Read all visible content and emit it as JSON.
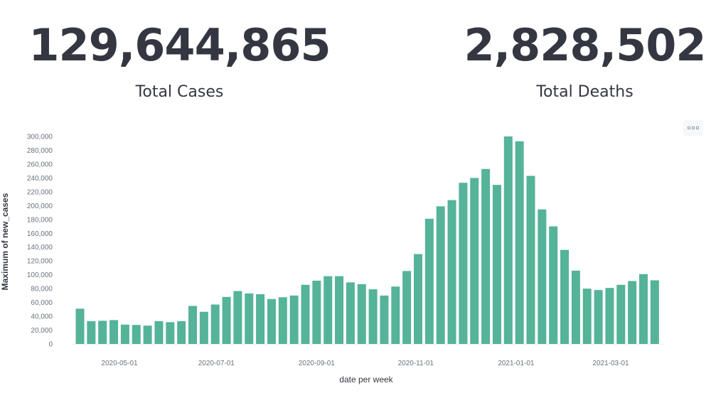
{
  "metrics": {
    "total_cases": {
      "value": "129,644,865",
      "label": "Total Cases"
    },
    "total_deaths": {
      "value": "2,828,502",
      "label": "Total Deaths"
    }
  },
  "panel_options_icon": "ellipsis-icon",
  "chart_data": {
    "type": "bar",
    "xlabel": "date per week",
    "ylabel": "Maximum of new_cases",
    "ylim": [
      0,
      300000
    ],
    "y_ticks": [
      "0",
      "20,000",
      "40,000",
      "60,000",
      "80,000",
      "100,000",
      "120,000",
      "140,000",
      "160,000",
      "180,000",
      "200,000",
      "220,000",
      "240,000",
      "260,000",
      "280,000",
      "300,000"
    ],
    "x_ticks": [
      "2020-05-01",
      "2020-07-01",
      "2020-09-01",
      "2020-11-01",
      "2021-01-01",
      "2021-03-01"
    ],
    "bar_color": "#54b399",
    "grid": false,
    "values": [
      51000,
      33000,
      33500,
      34500,
      28000,
      27500,
      26500,
      33000,
      31500,
      33000,
      55000,
      46500,
      57000,
      68000,
      76500,
      73000,
      72000,
      65000,
      67500,
      70000,
      85500,
      91500,
      98000,
      98000,
      89000,
      86500,
      79000,
      70000,
      83000,
      105500,
      130000,
      181000,
      199000,
      208000,
      233000,
      240000,
      253000,
      230000,
      300000,
      293000,
      243000,
      194500,
      170000,
      136000,
      106000,
      80000,
      78000,
      81000,
      85500,
      91000,
      101000,
      92000
    ]
  }
}
